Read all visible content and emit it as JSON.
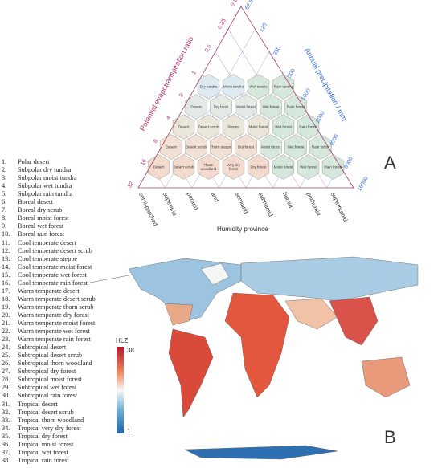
{
  "panel_labels": {
    "a": "A",
    "b": "B"
  },
  "triangle": {
    "left_axis": {
      "title": "Potential evapotranspiration ratio",
      "ticks": [
        "0.125",
        "0.25",
        "0.5",
        "1",
        "2",
        "4",
        "8",
        "16",
        "32"
      ]
    },
    "right_axis": {
      "title": "Annual precipitation / mm",
      "ticks": [
        "62.5",
        "125",
        "250",
        "500",
        "1000",
        "2000",
        "4000",
        "8000",
        "16000"
      ]
    },
    "bottom_axis": {
      "title": "Humidity province",
      "ticks": [
        "semi-parched",
        "superarid",
        "perarid",
        "arid",
        "semiarid",
        "subhumid",
        "humid",
        "perhumid",
        "superhumid"
      ]
    },
    "rows": [
      [
        "Dry tundra",
        "Moist tundra",
        "Wet tundra",
        "Rain tundra"
      ],
      [
        "Desert",
        "Dry bush",
        "Moist forest",
        "Wet forest",
        "Rain forest"
      ],
      [
        "Desert",
        "Desert scrub",
        "Steppe",
        "Moist forest",
        "Wet forest",
        "Rain forest"
      ],
      [
        "Desert",
        "Desert scrub",
        "Thorn steppe",
        "Dry forest",
        "Moist forest",
        "Wet forest",
        "Rain forest"
      ],
      [
        "Desert",
        "Desert scrub",
        "Thorn woodland",
        "Very dry forest",
        "Dry forest",
        "Moist forest",
        "Wet forest",
        "Rain forest"
      ]
    ]
  },
  "colorbar": {
    "title": "HLZ",
    "max": "38",
    "min": "1"
  },
  "legend": [
    {
      "number": "1.",
      "name": "Polar desert"
    },
    {
      "number": "2.",
      "name": "Subpolar dry tundra"
    },
    {
      "number": "3.",
      "name": "Subpolar moist tundra"
    },
    {
      "number": "4.",
      "name": "Subpolar wet tundra"
    },
    {
      "number": "5.",
      "name": "Subpolar rain tundra"
    },
    {
      "number": "6.",
      "name": "Boreal desert"
    },
    {
      "number": "7.",
      "name": "Boreal dry scrub"
    },
    {
      "number": "8.",
      "name": "Boreal moist forest"
    },
    {
      "number": "9.",
      "name": "Boreal wet forest"
    },
    {
      "number": "10.",
      "name": "Boreal rain forest"
    },
    {
      "number": "11.",
      "name": "Cool temperate desert"
    },
    {
      "number": "12.",
      "name": "Cool temperate desert scrub"
    },
    {
      "number": "13.",
      "name": "Cool temperate steppe"
    },
    {
      "number": "14.",
      "name": "Cool temperate moist forest"
    },
    {
      "number": "15.",
      "name": "Cool temperate wet forest"
    },
    {
      "number": "16.",
      "name": "Cool temperate rain forest"
    },
    {
      "number": "17.",
      "name": "Warm temperate desert"
    },
    {
      "number": "18.",
      "name": "Warm temperate desert scrub"
    },
    {
      "number": "19.",
      "name": "Warm temperate thorn scrub"
    },
    {
      "number": "20.",
      "name": "Warm temperate dry forest"
    },
    {
      "number": "21.",
      "name": "Warm temperate moist forest"
    },
    {
      "number": "22.",
      "name": "Warm temperate wet forest"
    },
    {
      "number": "23.",
      "name": "Warm temperate rain forest"
    },
    {
      "number": "24.",
      "name": "Subtropical desert"
    },
    {
      "number": "25.",
      "name": "Subtropical desert scrub"
    },
    {
      "number": "26.",
      "name": "Subtropical thorn woodland"
    },
    {
      "number": "27.",
      "name": "Subtropical dry forest"
    },
    {
      "number": "28.",
      "name": "Subtropical moist forest"
    },
    {
      "number": "29.",
      "name": "Subtropical wet forest"
    },
    {
      "number": "30.",
      "name": "Subtropical rain forest"
    },
    {
      "number": "31.",
      "name": "Tropical desert"
    },
    {
      "number": "32.",
      "name": "Tropical desert scrub"
    },
    {
      "number": "33.",
      "name": "Tropical thorn woodland"
    },
    {
      "number": "34.",
      "name": "Tropical very dry forest"
    },
    {
      "number": "35.",
      "name": "Tropical dry forest"
    },
    {
      "number": "36.",
      "name": "Tropical moist forest"
    },
    {
      "number": "37.",
      "name": "Tropical wet forest"
    },
    {
      "number": "38.",
      "name": "Tropical rain forest"
    }
  ]
}
